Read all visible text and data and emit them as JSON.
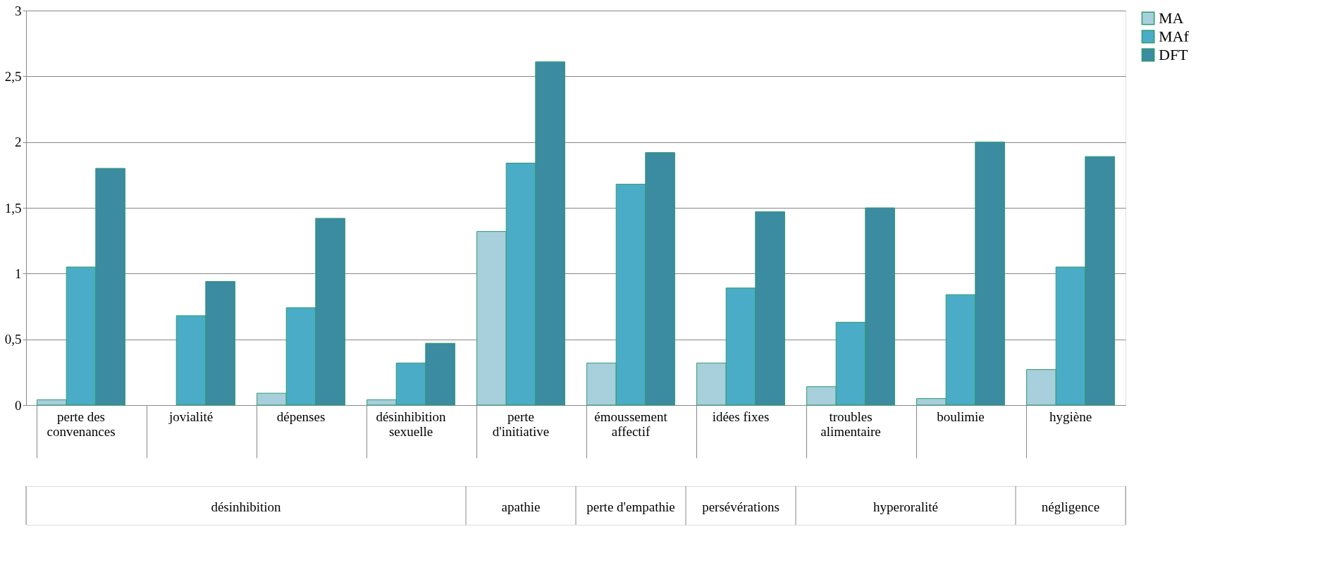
{
  "chart_data": {
    "type": "bar",
    "categories": [
      "perte des\nconvenances",
      "jovialité",
      "dépenses",
      "désinhibition\nsexuelle",
      "perte\nd'initiative",
      "émoussement\naffectif",
      "idées fixes",
      "troubles\nalimentaire",
      "boulimie",
      "hygiène"
    ],
    "series": [
      {
        "name": "MA",
        "color": "#a8cfdc",
        "values": [
          0.04,
          null,
          0.09,
          0.04,
          1.32,
          0.32,
          0.32,
          0.14,
          0.05,
          0.27
        ]
      },
      {
        "name": "MAf",
        "color": "#4aacc6",
        "values": [
          1.05,
          0.68,
          0.74,
          0.32,
          1.84,
          1.68,
          0.89,
          0.63,
          0.84,
          1.05
        ]
      },
      {
        "name": "DFT",
        "color": "#3b8ba1",
        "values": [
          1.8,
          0.94,
          1.42,
          0.47,
          2.61,
          1.92,
          1.47,
          1.5,
          2.0,
          1.89
        ]
      }
    ],
    "ylim": [
      0,
      3
    ],
    "yticks": [
      0,
      {
        "value": 0.5,
        "label": "0,5"
      },
      1,
      {
        "value": 1.5,
        "label": "1,5"
      },
      2,
      {
        "value": 2.5,
        "label": "2,5"
      },
      3
    ],
    "grid": "y",
    "legend": "right",
    "annotations": [
      "désinhibition",
      "apathie",
      "perte d'empathie",
      "persévérations",
      "hyperoralité",
      "négligence"
    ]
  }
}
